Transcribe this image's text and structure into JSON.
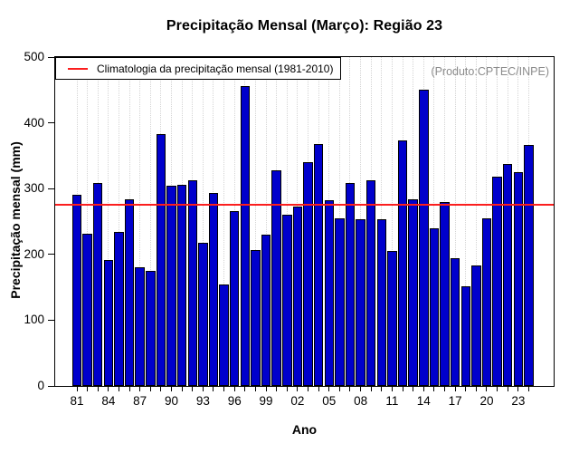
{
  "title": "Precipitação Mensal (Março): Região 23",
  "watermark": "(Produto:CPTEC/INPE)",
  "colors": {
    "bar_fill": "#0000cc",
    "bar_border": "#000000",
    "climatology_line": "#fb1e1e",
    "grid_line": "#d4d4d4",
    "watermark_text": "#8c8c8c",
    "axis": "#000000"
  },
  "chart_data": {
    "type": "bar",
    "title": "Precipitação Mensal (Março): Região 23",
    "xlabel": "Ano",
    "ylabel": "Precipitação mensal (mm)",
    "ylim": [
      0,
      500
    ],
    "yticks": [
      0,
      100,
      200,
      300,
      400,
      500
    ],
    "grid": "vertical-dotted-per-year",
    "legend": "Climatologia da precipitação mensal (1981-2010)",
    "legend_position": "top-left",
    "climatology_value": 275,
    "x_tick_labels": [
      "81",
      "84",
      "87",
      "90",
      "93",
      "96",
      "99",
      "02",
      "05",
      "08",
      "11",
      "14",
      "17",
      "20",
      "23"
    ],
    "years": [
      1981,
      1982,
      1983,
      1984,
      1985,
      1986,
      1987,
      1988,
      1989,
      1990,
      1991,
      1992,
      1993,
      1994,
      1995,
      1996,
      1997,
      1998,
      1999,
      2000,
      2001,
      2002,
      2003,
      2004,
      2005,
      2006,
      2007,
      2008,
      2009,
      2010,
      2011,
      2012,
      2013,
      2014,
      2015,
      2016,
      2017,
      2018,
      2019,
      2020,
      2021,
      2022,
      2023,
      2024
    ],
    "values": [
      290,
      231,
      308,
      191,
      234,
      284,
      180,
      175,
      383,
      304,
      306,
      312,
      218,
      294,
      154,
      266,
      456,
      207,
      230,
      328,
      261,
      273,
      340,
      368,
      283,
      255,
      309,
      254,
      313,
      253,
      205,
      373,
      284,
      451,
      240,
      280,
      194,
      152,
      183,
      255,
      318,
      338,
      325,
      366
    ]
  }
}
